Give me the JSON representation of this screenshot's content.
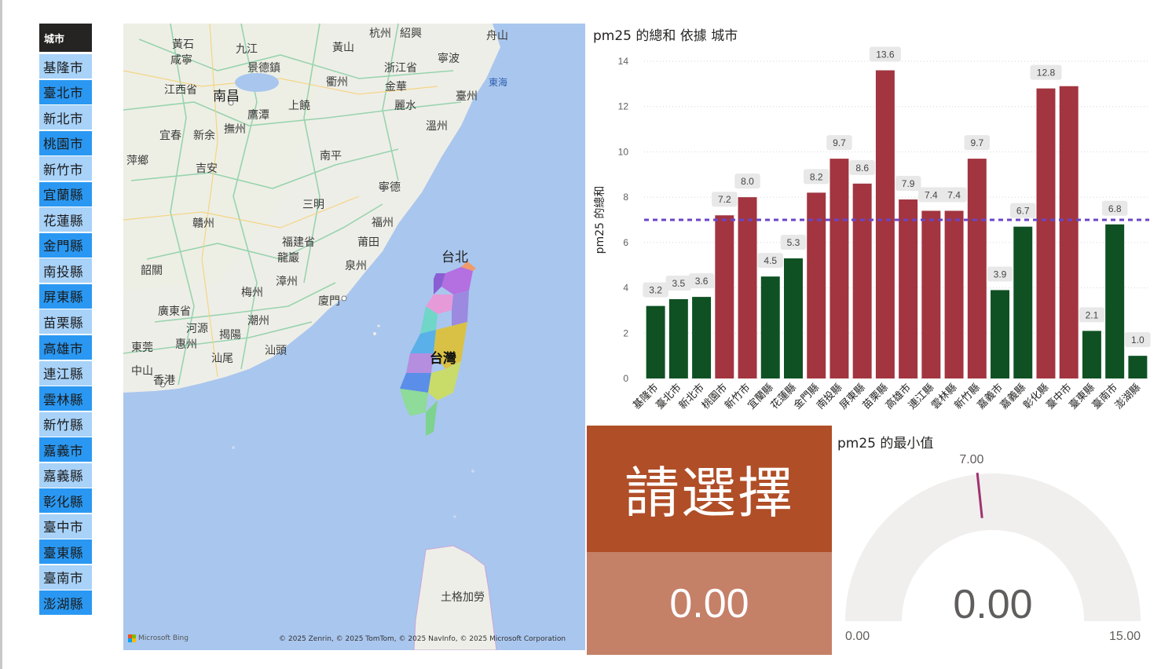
{
  "slicer": {
    "header": "城市",
    "items": [
      "基隆市",
      "臺北市",
      "新北市",
      "桃園市",
      "新竹市",
      "宜蘭縣",
      "花蓮縣",
      "金門縣",
      "南投縣",
      "屏東縣",
      "苗栗縣",
      "高雄市",
      "連江縣",
      "雲林縣",
      "新竹縣",
      "嘉義市",
      "嘉義縣",
      "彰化縣",
      "臺中市",
      "臺東縣",
      "臺南市",
      "澎湖縣"
    ]
  },
  "map": {
    "labels": [
      "杭州",
      "紹興",
      "舟山",
      "黃石",
      "九江",
      "咸寧",
      "黃山",
      "寧波",
      "南昌",
      "景德鎮",
      "浙江省",
      "江西省",
      "衢州",
      "金華",
      "東海",
      "臺州",
      "鷹潭",
      "麗水",
      "上饒",
      "撫州",
      "溫州",
      "宜春",
      "新余",
      "南平",
      "萍鄉",
      "吉安",
      "寧德",
      "三明",
      "福州",
      "贛州",
      "福建省",
      "莆田",
      "台北",
      "龍巖",
      "泉州",
      "韶關",
      "梅州",
      "漳州",
      "廈門",
      "廣東省",
      "潮州",
      "河源",
      "揭陽",
      "東莞",
      "惠州",
      "汕頭",
      "中山",
      "汕尾",
      "香港",
      "台灣",
      "土格加勞"
    ],
    "attribution": "© 2025 Zenrin, © 2025 TomTom, © 2025 NavInfo, © 2025 Microsoft Corporation",
    "bing": "Microsoft Bing"
  },
  "bar_chart_title": "pm25 的總和 依據 城市",
  "chart_data": {
    "type": "bar",
    "title": "pm25 的總和 依據 城市",
    "xlabel": "",
    "ylabel": "pm25 的總和",
    "ylim": [
      0,
      14
    ],
    "yticks": [
      "0",
      "2",
      "4",
      "6",
      "8",
      "10",
      "12",
      "14"
    ],
    "reference_line": 7,
    "categories": [
      "基隆市",
      "臺北市",
      "新北市",
      "桃園市",
      "新竹市",
      "宜蘭縣",
      "花蓮縣",
      "金門縣",
      "南投縣",
      "屏東縣",
      "苗栗縣",
      "高雄市",
      "連江縣",
      "雲林縣",
      "新竹縣",
      "嘉義市",
      "嘉義縣",
      "彰化縣",
      "臺中市",
      "臺東縣",
      "臺南市",
      "澎湖縣"
    ],
    "values": [
      3.2,
      3.5,
      3.6,
      7.2,
      8.0,
      4.5,
      5.3,
      8.2,
      9.7,
      8.6,
      13.6,
      7.9,
      7.4,
      7.4,
      9.7,
      3.9,
      6.7,
      12.8,
      12.9,
      2.1,
      6.8,
      1.0
    ],
    "data_labels": [
      "3.2",
      "3.5",
      "3.6",
      "7.2",
      "8.0",
      "4.5",
      "5.3",
      "8.2",
      "9.7",
      "8.6",
      "13.6",
      "7.9",
      "7.4",
      "7.4",
      "9.7",
      "3.9",
      "6.7",
      "12.8",
      "",
      "2.1",
      "6.8",
      "1.0"
    ],
    "colors": {
      "above": "#a23540",
      "below": "#0f5123",
      "reference": "#6a45c8"
    },
    "grid": true
  },
  "card": {
    "prompt": "請選擇",
    "value": "0.00"
  },
  "gauge": {
    "title": "pm25 的最小值",
    "value": 0.0,
    "value_label": "0.00",
    "min": 0,
    "min_label": "0.00",
    "max": 15,
    "max_label": "15.00",
    "target": 7,
    "target_label": "7.00",
    "colors": {
      "track": "#f0efee",
      "target": "#a0336f"
    }
  }
}
